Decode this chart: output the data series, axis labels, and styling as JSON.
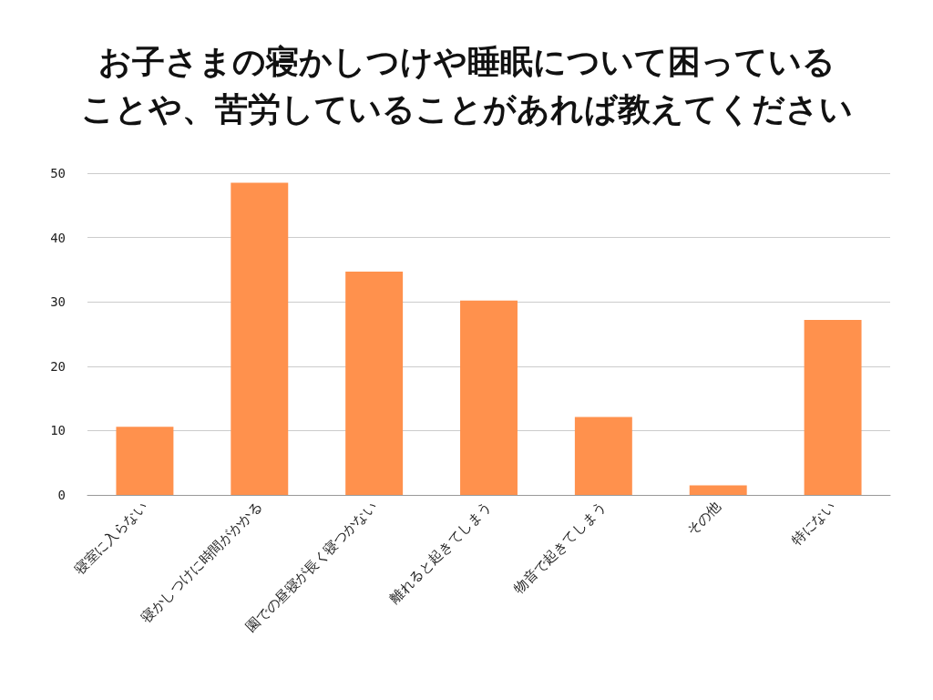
{
  "chart_data": {
    "type": "bar",
    "title": "お子さまの寝かしつけや睡眠について困っていることや、苦労していることがあれば教えてください",
    "categories": [
      "寝室に入らない",
      "寝かしつけに時間がかかる",
      "園での昼寝が長く寝つかない",
      "離れると起きてしまう",
      "物音で起きてしまう",
      "その他",
      "特にない"
    ],
    "values": [
      10.6,
      48.5,
      34.7,
      30.2,
      12.1,
      1.5,
      27.2
    ],
    "color": "#ff914d",
    "ylim": [
      0,
      50
    ],
    "yticks": [
      0,
      10,
      20,
      30,
      40,
      50
    ],
    "grid": "y"
  }
}
